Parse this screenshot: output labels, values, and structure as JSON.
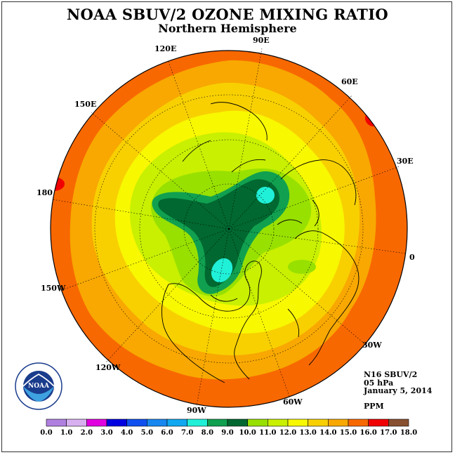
{
  "title": "NOAA SBUV/2 OZONE MIXING RATIO",
  "subtitle": "Northern Hemisphere",
  "info": {
    "satellite": "N16 SBUV/2",
    "level": "05 hPa",
    "date": "January 5, 2014",
    "units": "PPM"
  },
  "longitude_labels": {
    "e90": "90E",
    "e60": "60E",
    "e30": "30E",
    "zero": "0",
    "w30": "30W",
    "w60": "60W",
    "w90": "90W",
    "w120": "120W",
    "w150": "150W",
    "l180": "180",
    "e150": "150E",
    "e120": "120E"
  },
  "logo": {
    "text": "NOAA",
    "ring_text": "NATIONAL OCEANIC AND ATMOSPHERIC ADMINISTRATION · U.S. DEPARTMENT OF COMMERCE"
  },
  "colorbar": {
    "bins": [
      {
        "from": 0.0,
        "to": 1.0,
        "color": "#b080e0"
      },
      {
        "from": 1.0,
        "to": 2.0,
        "color": "#d8b0f0"
      },
      {
        "from": 2.0,
        "to": 3.0,
        "color": "#e000e0"
      },
      {
        "from": 3.0,
        "to": 4.0,
        "color": "#0000e0"
      },
      {
        "from": 4.0,
        "to": 5.0,
        "color": "#1050f0"
      },
      {
        "from": 5.0,
        "to": 6.0,
        "color": "#1888f0"
      },
      {
        "from": 6.0,
        "to": 7.0,
        "color": "#10a8f0"
      },
      {
        "from": 7.0,
        "to": 8.0,
        "color": "#20f0d8"
      },
      {
        "from": 8.0,
        "to": 9.0,
        "color": "#10a050"
      },
      {
        "from": 9.0,
        "to": 10.0,
        "color": "#006830"
      },
      {
        "from": 10.0,
        "to": 11.0,
        "color": "#98e000"
      },
      {
        "from": 11.0,
        "to": 12.0,
        "color": "#c8f000"
      },
      {
        "from": 12.0,
        "to": 13.0,
        "color": "#f8f800"
      },
      {
        "from": 13.0,
        "to": 14.0,
        "color": "#f8d000"
      },
      {
        "from": 14.0,
        "to": 15.0,
        "color": "#f8a800"
      },
      {
        "from": 15.0,
        "to": 16.0,
        "color": "#f86800"
      },
      {
        "from": 16.0,
        "to": 17.0,
        "color": "#f00000"
      },
      {
        "from": 17.0,
        "to": 18.0,
        "color": "#885030"
      }
    ],
    "tick_labels": [
      "0.0",
      "1.0",
      "2.0",
      "3.0",
      "4.0",
      "5.0",
      "6.0",
      "7.0",
      "8.0",
      "9.0",
      "10.0",
      "11.0",
      "12.0",
      "13.0",
      "14.0",
      "15.0",
      "16.0",
      "17.0",
      "18.0"
    ]
  }
}
